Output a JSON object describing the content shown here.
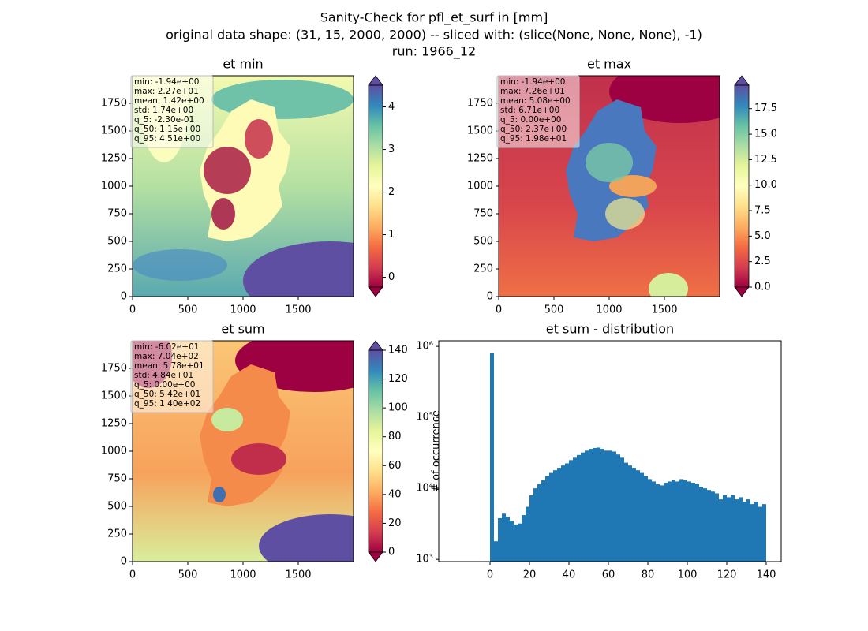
{
  "suptitle": [
    "Sanity-Check for pfl_et_surf in [mm]",
    "original data shape: (31, 15, 2000, 2000) -- sliced with: (slice(None, None, None), -1)",
    "run: 1966_12"
  ],
  "chart_data": [
    {
      "type": "heatmap",
      "title": "et min",
      "xlim": [
        0,
        2000
      ],
      "ylim": [
        0,
        2000
      ],
      "xticks": [
        0,
        500,
        1000,
        1500
      ],
      "yticks": [
        0,
        250,
        500,
        750,
        1000,
        1250,
        1500,
        1750
      ],
      "colorbar": {
        "colormap": "Spectral",
        "extend": "both",
        "lim": [
          -0.23,
          4.51
        ],
        "ticks": [
          0,
          1,
          2,
          3,
          4
        ]
      },
      "stats": [
        "min: -1.94e+00",
        "max: 2.27e+01",
        "mean: 1.42e+00",
        "std: 1.74e+00",
        "q_5: -2.30e-01",
        "q_50: 1.15e+00",
        "q_95: 4.51e+00"
      ]
    },
    {
      "type": "heatmap",
      "title": "et max",
      "xlim": [
        0,
        2000
      ],
      "ylim": [
        0,
        2000
      ],
      "xticks": [
        0,
        500,
        1000,
        1500
      ],
      "yticks": [
        0,
        250,
        500,
        750,
        1000,
        1250,
        1500,
        1750
      ],
      "colorbar": {
        "colormap": "Spectral",
        "extend": "both",
        "lim": [
          0,
          19.8
        ],
        "ticks": [
          {
            "value": 0,
            "label": "0.0"
          },
          {
            "value": 2.5,
            "label": "2.5"
          },
          {
            "value": 5,
            "label": "5.0"
          },
          {
            "value": 7.5,
            "label": "7.5"
          },
          {
            "value": 10,
            "label": "10.0"
          },
          {
            "value": 12.5,
            "label": "12.5"
          },
          {
            "value": 15,
            "label": "15.0"
          },
          {
            "value": 17.5,
            "label": "17.5"
          }
        ]
      },
      "stats": [
        "min: -1.94e+00",
        "max: 7.26e+01",
        "mean: 5.08e+00",
        "std: 6.71e+00",
        "q_5: 0.00e+00",
        "q_50: 2.37e+00",
        "q_95: 1.98e+01"
      ]
    },
    {
      "type": "heatmap",
      "title": "et sum",
      "xlim": [
        0,
        2000
      ],
      "ylim": [
        0,
        2000
      ],
      "xticks": [
        0,
        500,
        1000,
        1500
      ],
      "yticks": [
        0,
        250,
        500,
        750,
        1000,
        1250,
        1500,
        1750
      ],
      "colorbar": {
        "colormap": "Spectral",
        "extend": "both",
        "lim": [
          0,
          140
        ],
        "ticks": [
          0,
          20,
          40,
          60,
          80,
          100,
          120,
          140
        ]
      },
      "stats": [
        "min: -6.02e+01",
        "max: 7.04e+02",
        "mean: 5.78e+01",
        "std: 4.84e+01",
        "q_5: 0.00e+00",
        "q_50: 5.42e+01",
        "q_95: 1.40e+02"
      ]
    },
    {
      "type": "histogram",
      "title": "et sum - distribution",
      "ylabel": "# of occurrence",
      "log_y": true,
      "color": "#1f77b4",
      "xlim": [
        -26,
        147.6
      ],
      "xticks": [
        0,
        20,
        40,
        60,
        80,
        100,
        120,
        140
      ],
      "ylim": [
        930,
        1200000
      ],
      "yticks": [
        {
          "value": 1000,
          "label": "10³"
        },
        {
          "value": 10000,
          "label": "10⁴"
        },
        {
          "value": 100000,
          "label": "10⁵"
        },
        {
          "value": 1000000,
          "label": "10⁶"
        }
      ],
      "bins": [
        0,
        2,
        4,
        6,
        8,
        10,
        12,
        14,
        16,
        18,
        20,
        22,
        24,
        26,
        28,
        30,
        32,
        34,
        36,
        38,
        40,
        42,
        44,
        46,
        48,
        50,
        52,
        54,
        56,
        58,
        60,
        62,
        64,
        66,
        68,
        70,
        72,
        74,
        76,
        78,
        80,
        82,
        84,
        86,
        88,
        90,
        92,
        94,
        96,
        98,
        100,
        102,
        104,
        106,
        108,
        110,
        112,
        114,
        116,
        118,
        120,
        122,
        124,
        126,
        128,
        130,
        132,
        134,
        136,
        138,
        140
      ],
      "counts": [
        800000,
        1800,
        3800,
        4400,
        4000,
        3500,
        3100,
        3200,
        4200,
        5500,
        8000,
        10000,
        11500,
        13000,
        15000,
        16500,
        18000,
        19500,
        21000,
        22500,
        25000,
        27000,
        29500,
        32000,
        34000,
        36000,
        37000,
        37500,
        36000,
        34000,
        34000,
        33000,
        30000,
        27000,
        23000,
        21000,
        19500,
        18000,
        16500,
        15000,
        13500,
        12500,
        11500,
        11000,
        12000,
        12500,
        13000,
        12500,
        13500,
        13000,
        12500,
        12000,
        11500,
        10500,
        10000,
        9500,
        9000,
        8500,
        7000,
        8000,
        7500,
        8000,
        7000,
        7500,
        6500,
        7000,
        6000,
        6500,
        5500,
        6000
      ]
    }
  ]
}
